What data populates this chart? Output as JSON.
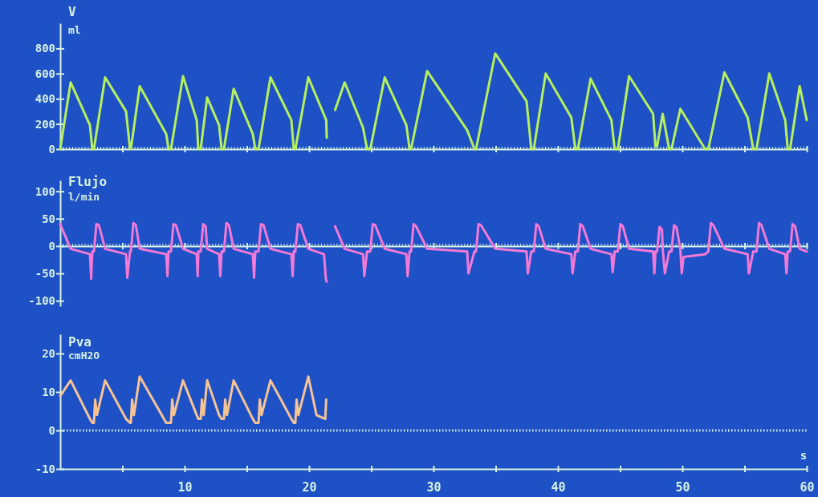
{
  "chart_data": [
    {
      "type": "line",
      "title": "V",
      "ylabel": "ml",
      "xlim": [
        0,
        60
      ],
      "ylim": [
        0,
        1000
      ],
      "yticks": [
        0,
        200,
        400,
        600,
        800
      ],
      "xticks": [
        {
          "value": 5,
          "label": null
        },
        {
          "value": 10,
          "label": null
        },
        {
          "value": 15,
          "label": null
        },
        {
          "value": 20,
          "label": null
        },
        {
          "value": 25,
          "label": null
        },
        {
          "value": 30,
          "label": null
        },
        {
          "value": 35,
          "label": null
        },
        {
          "value": 40,
          "label": null
        },
        {
          "value": 45,
          "label": null
        },
        {
          "value": 50,
          "label": null
        },
        {
          "value": 55,
          "label": null
        },
        {
          "value": 60,
          "label": null
        }
      ],
      "tick_labels": "y",
      "series": [
        {
          "color": "#b6f05c",
          "x": [
            0,
            0.84,
            2.39,
            2.58,
            2.71,
            3.61,
            5.29,
            5.61,
            5.68,
            6.39,
            8.52,
            8.71,
            8.9,
            9.87,
            10.97,
            11.1,
            11.29,
            11.81,
            12.77,
            12.97,
            13.16,
            13.94,
            15.48,
            15.68,
            15.94,
            16.9,
            18.58,
            18.77,
            18.9,
            19.94,
            21.38,
            21.42,
            21.7,
            22.09,
            22.86,
            24.34,
            24.66,
            24.92,
            26.08,
            27.82,
            28.08,
            28.2,
            29.49,
            32.71,
            33.29,
            33.42,
            34.96,
            37.48,
            37.86,
            38.06,
            39.02,
            41.08,
            41.4,
            41.6,
            42.63,
            44.3,
            44.56,
            44.82,
            45.72,
            47.65,
            47.84,
            47.97,
            48.42,
            48.94,
            49.13,
            49.84,
            51.83,
            52.09,
            53.38,
            55.25,
            55.7,
            55.96,
            56.99,
            58.27,
            58.47,
            58.66,
            59.43,
            60
          ],
          "values": [
            0,
            530,
            190,
            0,
            0,
            570,
            300,
            0,
            0,
            500,
            120,
            0,
            0,
            580,
            230,
            0,
            0,
            410,
            190,
            0,
            0,
            480,
            120,
            0,
            0,
            570,
            230,
            0,
            0,
            570,
            230,
            90,
            null,
            310,
            530,
            170,
            0,
            0,
            570,
            190,
            0,
            0,
            620,
            150,
            0,
            0,
            760,
            380,
            0,
            0,
            600,
            250,
            0,
            0,
            560,
            230,
            0,
            0,
            580,
            280,
            20,
            20,
            280,
            0,
            0,
            320,
            0,
            0,
            610,
            250,
            0,
            0,
            600,
            230,
            0,
            0,
            500,
            230
          ]
        }
      ]
    },
    {
      "type": "line",
      "title": "Flujo",
      "ylabel": "l/min",
      "xlim": [
        0,
        60
      ],
      "ylim": [
        -110,
        120
      ],
      "yticks": [
        -100,
        -50,
        0,
        50,
        100
      ],
      "xticks": [
        {
          "value": 5,
          "label": null
        },
        {
          "value": 10,
          "label": null
        },
        {
          "value": 15,
          "label": null
        },
        {
          "value": 20,
          "label": null
        },
        {
          "value": 25,
          "label": null
        },
        {
          "value": 30,
          "label": null
        },
        {
          "value": 35,
          "label": null
        },
        {
          "value": 40,
          "label": null
        },
        {
          "value": 45,
          "label": null
        },
        {
          "value": 50,
          "label": null
        },
        {
          "value": 55,
          "label": null
        },
        {
          "value": 60,
          "label": null
        }
      ],
      "tick_labels": "y",
      "series": [
        {
          "color": "#f27ad6",
          "x": [
            0,
            0.84,
            2.39,
            2.49,
            2.58,
            2.71,
            2.91,
            3.11,
            3.61,
            5.29,
            5.39,
            5.61,
            5.68,
            5.88,
            6.08,
            6.39,
            8.52,
            8.62,
            8.71,
            8.9,
            9.1,
            9.3,
            9.87,
            10.97,
            11.05,
            11.1,
            11.29,
            11.49,
            11.69,
            11.81,
            12.77,
            12.87,
            12.97,
            13.16,
            13.36,
            13.56,
            13.94,
            15.48,
            15.58,
            15.68,
            15.94,
            16.14,
            16.34,
            16.9,
            18.58,
            18.68,
            18.77,
            18.9,
            19.1,
            19.3,
            19.94,
            21.2,
            21.35,
            21.42,
            21.7,
            22.09,
            22.86,
            24.34,
            24.44,
            24.66,
            24.92,
            25.12,
            25.32,
            26.08,
            27.82,
            27.92,
            28.08,
            28.2,
            28.4,
            28.6,
            29.49,
            32.71,
            32.81,
            33.29,
            33.42,
            33.62,
            33.82,
            34.96,
            37.48,
            37.58,
            37.86,
            38.06,
            38.26,
            38.46,
            39.02,
            41.08,
            41.18,
            41.4,
            41.6,
            41.8,
            42.0,
            42.63,
            44.3,
            44.4,
            44.56,
            44.82,
            45.02,
            45.22,
            45.72,
            47.65,
            47.75,
            47.84,
            47.97,
            48.17,
            48.37,
            48.42,
            48.6,
            48.94,
            49.13,
            49.33,
            49.53,
            49.84,
            49.95,
            50.1,
            51.83,
            52.09,
            52.29,
            52.49,
            53.38,
            55.25,
            55.35,
            55.7,
            55.96,
            56.16,
            56.36,
            56.99,
            58.27,
            58.37,
            58.47,
            58.66,
            58.86,
            59.06,
            59.43,
            60
          ],
          "values": [
            40,
            -5,
            -15,
            -60,
            -10,
            -10,
            40,
            38,
            -5,
            -15,
            -58,
            -10,
            -10,
            42,
            38,
            -5,
            -15,
            -55,
            -10,
            -10,
            40,
            38,
            -5,
            -15,
            -55,
            -10,
            -10,
            40,
            36,
            -5,
            -15,
            -55,
            -10,
            -10,
            42,
            38,
            -5,
            -15,
            -58,
            -10,
            -10,
            40,
            38,
            -5,
            -15,
            -55,
            -10,
            -10,
            40,
            38,
            -5,
            -15,
            -60,
            -65,
            null,
            36,
            -5,
            -15,
            -55,
            -10,
            -10,
            40,
            38,
            -5,
            -15,
            -55,
            -10,
            -10,
            40,
            36,
            -5,
            -10,
            -50,
            -10,
            -10,
            40,
            38,
            -5,
            -10,
            -50,
            -10,
            -10,
            40,
            36,
            -5,
            -15,
            -50,
            -10,
            -10,
            40,
            36,
            -5,
            -15,
            -48,
            -10,
            -10,
            40,
            36,
            -5,
            -10,
            -50,
            -10,
            -10,
            35,
            30,
            -5,
            -50,
            -10,
            -10,
            38,
            34,
            -5,
            -50,
            -20,
            -15,
            -10,
            42,
            38,
            -5,
            -15,
            -50,
            -10,
            -10,
            42,
            38,
            -5,
            -15,
            -50,
            -10,
            -10,
            40,
            36,
            -5,
            -10
          ]
        }
      ]
    },
    {
      "type": "line",
      "title": "Pva",
      "ylabel": "cmH2O",
      "xlabel": "s",
      "xlim": [
        0,
        60
      ],
      "ylim": [
        -10,
        25
      ],
      "yticks": [
        -10,
        0,
        10,
        20
      ],
      "xticks": [
        {
          "value": 5,
          "label": null
        },
        10,
        {
          "value": 15,
          "label": null
        },
        20,
        {
          "value": 25,
          "label": null
        },
        30,
        {
          "value": 35,
          "label": null
        },
        40,
        {
          "value": 45,
          "label": null
        },
        50,
        {
          "value": 55,
          "label": null
        },
        60
      ],
      "ref_lines": [
        {
          "axis": "y",
          "value": 0,
          "line_style": "dotted"
        }
      ],
      "series": [
        {
          "color": "#f6c494",
          "x": [
            0,
            0.84,
            2.39,
            2.58,
            2.71,
            2.81,
            2.95,
            3.61,
            5.29,
            5.61,
            5.68,
            5.78,
            5.92,
            6.39,
            8.52,
            8.71,
            8.9,
            9.0,
            9.14,
            9.87,
            10.97,
            11.1,
            11.29,
            11.39,
            11.53,
            11.81,
            12.77,
            12.97,
            13.16,
            13.26,
            13.4,
            13.94,
            15.48,
            15.68,
            15.94,
            16.04,
            16.18,
            16.9,
            18.58,
            18.77,
            18.9,
            19.0,
            19.14,
            19.94,
            20.6,
            21.3,
            21.38
          ],
          "values": [
            9,
            13,
            3,
            2,
            2,
            8,
            4,
            13,
            3,
            2,
            2,
            8,
            4,
            14,
            2,
            2,
            2,
            8,
            4,
            13,
            4,
            3,
            3,
            8,
            4,
            13,
            4,
            3,
            3,
            8,
            4,
            13,
            3,
            2,
            2,
            8,
            4,
            13,
            3,
            2,
            2,
            8,
            4,
            14,
            4,
            3,
            8
          ]
        }
      ]
    }
  ]
}
